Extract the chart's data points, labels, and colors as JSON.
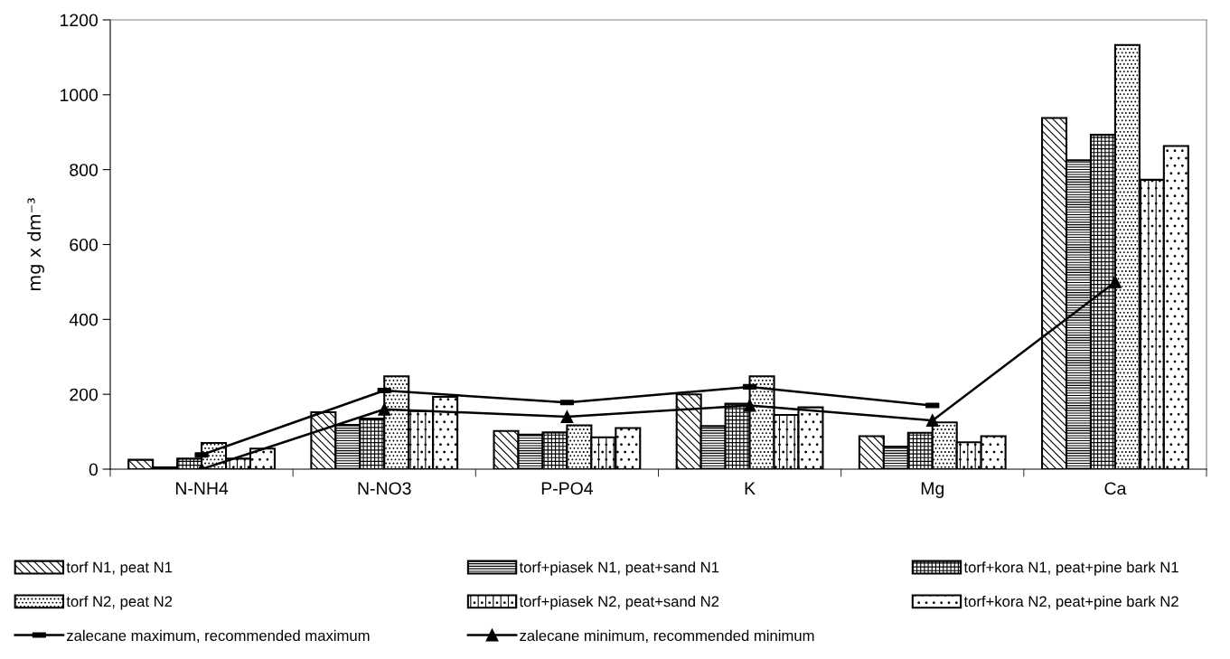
{
  "chart_data": {
    "type": "bar",
    "ylabel": "mg x dm⁻³",
    "categories": [
      "N-NH4",
      "N-NO3",
      "P-PO4",
      "K",
      "Mg",
      "Ca"
    ],
    "ylim": [
      0,
      1200
    ],
    "yticks": [
      0,
      200,
      400,
      600,
      800,
      1000,
      1200
    ],
    "grid": false,
    "legend": "bottom",
    "series": [
      {
        "name": "torf N1, peat N1",
        "color": "#000000",
        "values": [
          25,
          152,
          102,
          200,
          88,
          938
        ]
      },
      {
        "name": "torf+piasek N1, peat+sand N1",
        "color": "#000000",
        "values": [
          5,
          118,
          92,
          115,
          60,
          825
        ]
      },
      {
        "name": "torf+kora N1, peat+pine bark N1",
        "color": "#000000",
        "values": [
          28,
          135,
          98,
          175,
          97,
          893
        ]
      },
      {
        "name": "torf N2, peat N2",
        "color": "#000000",
        "values": [
          70,
          248,
          117,
          248,
          125,
          1133
        ]
      },
      {
        "name": "torf+piasek N2, peat+sand N2",
        "color": "#000000",
        "values": [
          28,
          155,
          85,
          145,
          72,
          773
        ]
      },
      {
        "name": "torf+kora N2, peat+pine bark N2",
        "color": "#000000",
        "values": [
          55,
          193,
          110,
          165,
          88,
          863
        ]
      },
      {
        "name": "zalecane maximum, recommended maximum",
        "type": "line",
        "color": "#000000",
        "marker": "square",
        "values": [
          38,
          210,
          178,
          220,
          170,
          null
        ]
      },
      {
        "name": "zalecane minimum, recommended minimum",
        "type": "line",
        "color": "#000000",
        "marker": "triangle",
        "values": [
          0,
          160,
          140,
          170,
          130,
          500
        ]
      }
    ]
  }
}
